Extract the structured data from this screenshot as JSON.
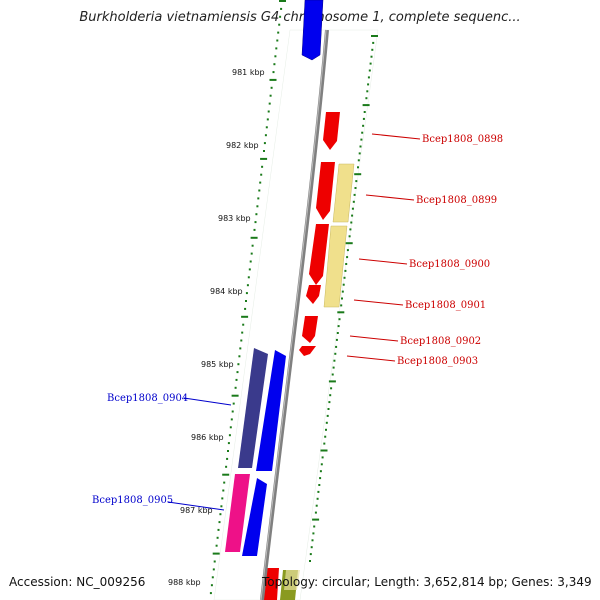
{
  "header": {
    "title": "Burkholderia vietnamiensis G4 chromosome 1, complete sequenc..."
  },
  "footer": {
    "accession": "Accession: NC_009256",
    "topology": "Topology: circular; Length: 3,652,814 bp; Genes: 3,349"
  },
  "axis": {
    "ticks": [
      "981 kbp",
      "982 kbp",
      "983 kbp",
      "984 kbp",
      "985 kbp",
      "986 kbp",
      "987 kbp",
      "988 kbp"
    ]
  },
  "genes": {
    "forward": [
      "Bcep1808_0904",
      "Bcep1808_0905"
    ],
    "reverse": [
      "Bcep1808_0898",
      "Bcep1808_0899",
      "Bcep1808_0900",
      "Bcep1808_0901",
      "Bcep1808_0902",
      "Bcep1808_0903"
    ]
  },
  "colors": {
    "backbone": "#808080",
    "tick": "#1a7a1a",
    "forward_label": "#0000cc",
    "reverse_label": "#cc0000",
    "gene_red": "#ee0000",
    "gene_blue": "#0000ee",
    "gene_navy": "#3a3a8c",
    "gene_pink": "#ee1188",
    "gene_khaki": "#f0e08c"
  }
}
